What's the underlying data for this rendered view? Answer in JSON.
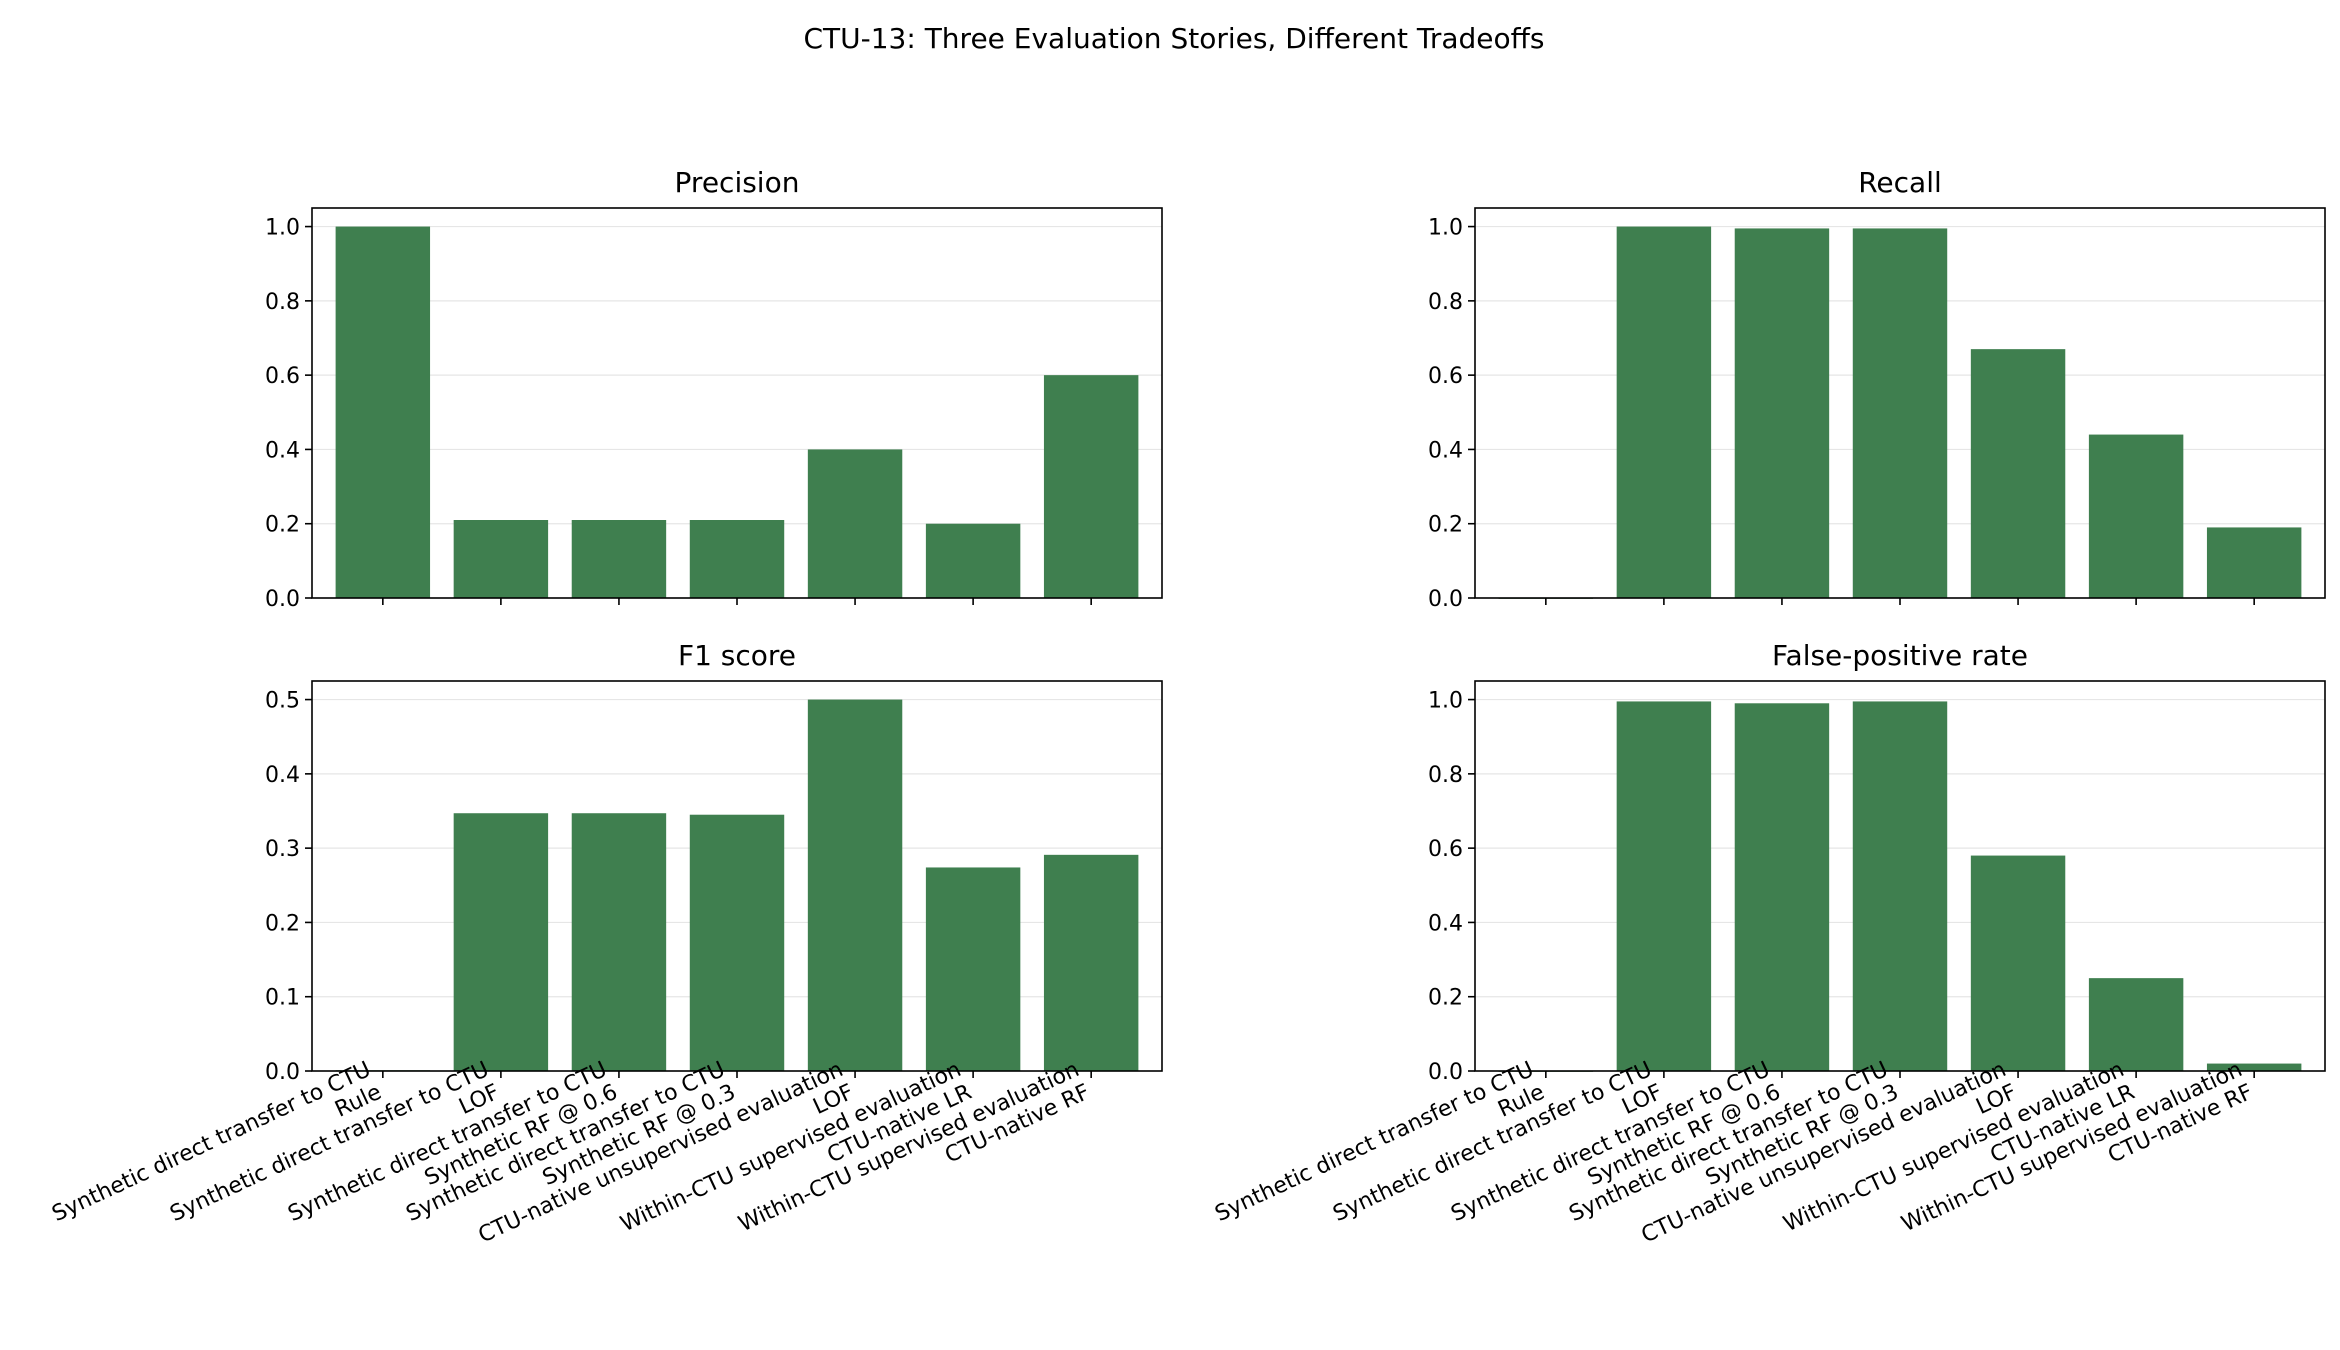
{
  "title": "CTU-13: Three Evaluation Stories, Different Tradeoffs",
  "colors": {
    "bar": "#3f7f4f",
    "grid": "#e6e6e6",
    "axis": "#000000"
  },
  "chart_data": [
    {
      "type": "bar",
      "title": "Precision",
      "categories": [
        "Synthetic direct transfer to CTU\nRule",
        "Synthetic direct transfer to CTU\nLOF",
        "Synthetic direct transfer to CTU\nSynthetic RF @ 0.6",
        "Synthetic direct transfer to CTU\nSynthetic RF @ 0.3",
        "CTU-native unsupervised evaluation\nLOF",
        "Within-CTU supervised evaluation\nCTU-native LR",
        "Within-CTU supervised evaluation\nCTU-native RF"
      ],
      "values": [
        1.0,
        0.21,
        0.21,
        0.21,
        0.4,
        0.2,
        0.6
      ],
      "ylim": [
        0,
        1.05
      ],
      "yticks": [
        "0.0",
        "0.2",
        "0.4",
        "0.6",
        "0.8",
        "1.0"
      ],
      "show_xticklabels": false
    },
    {
      "type": "bar",
      "title": "Recall",
      "categories": [
        "Synthetic direct transfer to CTU\nRule",
        "Synthetic direct transfer to CTU\nLOF",
        "Synthetic direct transfer to CTU\nSynthetic RF @ 0.6",
        "Synthetic direct transfer to CTU\nSynthetic RF @ 0.3",
        "CTU-native unsupervised evaluation\nLOF",
        "Within-CTU supervised evaluation\nCTU-native LR",
        "Within-CTU supervised evaluation\nCTU-native RF"
      ],
      "values": [
        0.0,
        1.0,
        0.995,
        0.995,
        0.67,
        0.44,
        0.19
      ],
      "ylim": [
        0,
        1.05
      ],
      "yticks": [
        "0.0",
        "0.2",
        "0.4",
        "0.6",
        "0.8",
        "1.0"
      ],
      "show_xticklabels": false
    },
    {
      "type": "bar",
      "title": "F1 score",
      "categories": [
        "Synthetic direct transfer to CTU\nRule",
        "Synthetic direct transfer to CTU\nLOF",
        "Synthetic direct transfer to CTU\nSynthetic RF @ 0.6",
        "Synthetic direct transfer to CTU\nSynthetic RF @ 0.3",
        "CTU-native unsupervised evaluation\nLOF",
        "Within-CTU supervised evaluation\nCTU-native LR",
        "Within-CTU supervised evaluation\nCTU-native RF"
      ],
      "values": [
        0.001,
        0.347,
        0.347,
        0.345,
        0.5,
        0.274,
        0.291
      ],
      "ylim": [
        0,
        0.525
      ],
      "yticks": [
        "0.0",
        "0.1",
        "0.2",
        "0.3",
        "0.4",
        "0.5"
      ],
      "show_xticklabels": true
    },
    {
      "type": "bar",
      "title": "False-positive rate",
      "categories": [
        "Synthetic direct transfer to CTU\nRule",
        "Synthetic direct transfer to CTU\nLOF",
        "Synthetic direct transfer to CTU\nSynthetic RF @ 0.6",
        "Synthetic direct transfer to CTU\nSynthetic RF @ 0.3",
        "CTU-native unsupervised evaluation\nLOF",
        "Within-CTU supervised evaluation\nCTU-native LR",
        "Within-CTU supervised evaluation\nCTU-native RF"
      ],
      "values": [
        0.0,
        0.995,
        0.99,
        0.995,
        0.58,
        0.25,
        0.02
      ],
      "ylim": [
        0,
        1.05
      ],
      "yticks": [
        "0.0",
        "0.2",
        "0.4",
        "0.6",
        "0.8",
        "1.0"
      ],
      "show_xticklabels": true
    }
  ]
}
